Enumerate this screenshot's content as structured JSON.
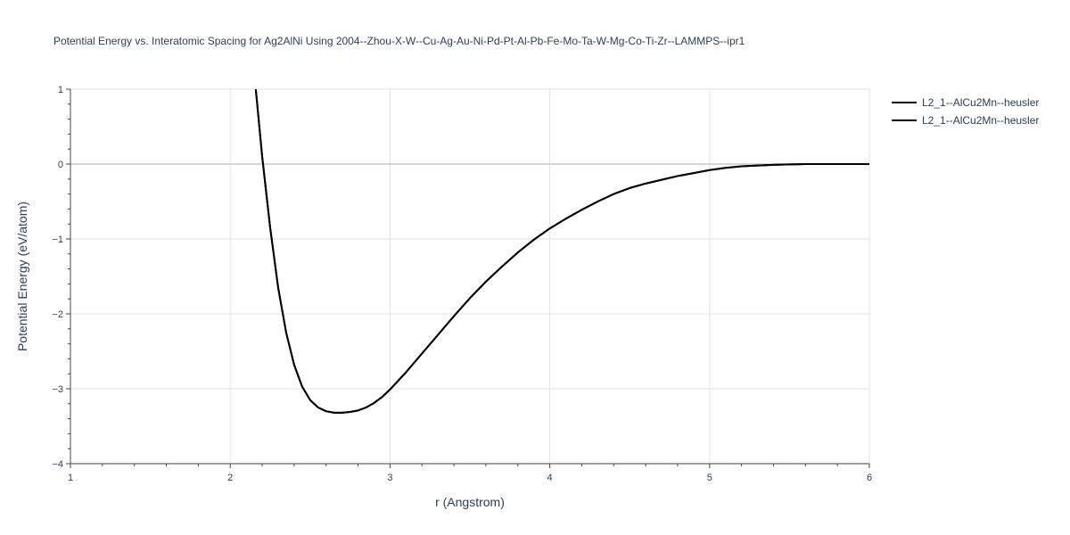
{
  "chart_data": {
    "type": "line",
    "title": "Potential Energy vs. Interatomic Spacing for Ag2AlNi Using 2004--Zhou-X-W--Cu-Ag-Au-Ni-Pd-Pt-Al-Pb-Fe-Mo-Ta-W-Mg-Co-Ti-Zr--LAMMPS--ipr1",
    "xlabel": "r (Angstrom)",
    "ylabel": "Potential Energy (eV/atom)",
    "xlim": [
      1,
      6
    ],
    "ylim": [
      -4,
      1
    ],
    "xticks": [
      1,
      2,
      3,
      4,
      5,
      6
    ],
    "xtick_labels": [
      "1",
      "2",
      "3",
      "4",
      "5",
      "6"
    ],
    "yticks": [
      -4,
      -3,
      -2,
      -1,
      0,
      1
    ],
    "ytick_labels": [
      "−4",
      "−3",
      "−2",
      "−1",
      "0",
      "1"
    ],
    "grid": true,
    "legend_position": "top-right",
    "series": [
      {
        "name": "L2_1--AlCu2Mn--heusler",
        "color": "#000000",
        "x": [
          2.16,
          2.2,
          2.25,
          2.3,
          2.35,
          2.4,
          2.45,
          2.5,
          2.55,
          2.6,
          2.65,
          2.7,
          2.75,
          2.8,
          2.85,
          2.9,
          2.95,
          3.0,
          3.1,
          3.2,
          3.3,
          3.4,
          3.5,
          3.6,
          3.7,
          3.8,
          3.9,
          4.0,
          4.1,
          4.2,
          4.3,
          4.4,
          4.5,
          4.6,
          4.7,
          4.8,
          4.9,
          5.0,
          5.1,
          5.2,
          5.3,
          5.4,
          5.5,
          5.6,
          5.8,
          6.0
        ],
        "y": [
          1.0,
          0.1,
          -0.85,
          -1.65,
          -2.25,
          -2.68,
          -2.97,
          -3.15,
          -3.25,
          -3.3,
          -3.32,
          -3.32,
          -3.31,
          -3.29,
          -3.25,
          -3.19,
          -3.11,
          -3.01,
          -2.78,
          -2.53,
          -2.28,
          -2.03,
          -1.79,
          -1.57,
          -1.37,
          -1.18,
          -1.01,
          -0.86,
          -0.73,
          -0.61,
          -0.5,
          -0.4,
          -0.32,
          -0.26,
          -0.21,
          -0.16,
          -0.12,
          -0.08,
          -0.05,
          -0.03,
          -0.02,
          -0.01,
          -0.005,
          0.0,
          0.0,
          0.0
        ]
      },
      {
        "name": "L2_1--AlCu2Mn--heusler",
        "color": "#000000",
        "x": [
          2.16,
          2.2,
          2.25,
          2.3,
          2.35,
          2.4,
          2.45,
          2.5,
          2.55,
          2.6,
          2.65,
          2.7,
          2.75,
          2.8,
          2.85,
          2.9,
          2.95,
          3.0,
          3.1,
          3.2,
          3.3,
          3.4,
          3.5,
          3.6,
          3.7,
          3.8,
          3.9,
          4.0,
          4.1,
          4.2,
          4.3,
          4.4,
          4.5,
          4.6,
          4.7,
          4.8,
          4.9,
          5.0,
          5.1,
          5.2,
          5.3,
          5.4,
          5.5,
          5.6,
          5.8,
          6.0
        ],
        "y": [
          1.0,
          0.1,
          -0.85,
          -1.65,
          -2.25,
          -2.68,
          -2.97,
          -3.15,
          -3.25,
          -3.3,
          -3.32,
          -3.32,
          -3.31,
          -3.29,
          -3.25,
          -3.19,
          -3.11,
          -3.01,
          -2.78,
          -2.53,
          -2.28,
          -2.03,
          -1.79,
          -1.57,
          -1.37,
          -1.18,
          -1.01,
          -0.86,
          -0.73,
          -0.61,
          -0.5,
          -0.4,
          -0.32,
          -0.26,
          -0.21,
          -0.16,
          -0.12,
          -0.08,
          -0.05,
          -0.03,
          -0.02,
          -0.01,
          -0.005,
          0.0,
          0.0,
          0.0
        ]
      }
    ]
  }
}
